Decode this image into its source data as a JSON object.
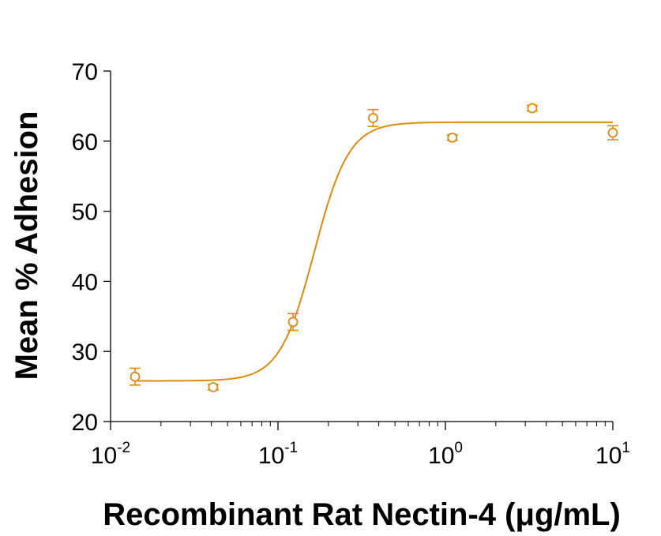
{
  "chart_data": {
    "type": "scatter",
    "title": "",
    "xlabel": "Recombinant Rat Nectin-4 (μg/mL)",
    "ylabel": "Mean % Adhesion",
    "x_scale": "log",
    "xlim": [
      0.01,
      10
    ],
    "ylim": [
      20,
      70
    ],
    "grid": false,
    "legend": "none",
    "color": "#e08a0e",
    "y_ticks": [
      "20",
      "30",
      "40",
      "50",
      "60",
      "70"
    ],
    "x_ticks": [
      {
        "base": "10",
        "exp": "-2"
      },
      {
        "base": "10",
        "exp": "-1"
      },
      {
        "base": "10",
        "exp": "0"
      },
      {
        "base": "10",
        "exp": "1"
      }
    ],
    "series": [
      {
        "x": [
          0.014,
          0.041,
          0.123,
          0.37,
          1.1,
          3.3,
          10
        ],
        "y": [
          26.4,
          24.9,
          34.2,
          63.3,
          60.5,
          64.7,
          61.2
        ],
        "error": [
          1.2,
          0.4,
          1.2,
          1.2,
          0.4,
          0.4,
          1.0
        ]
      }
    ],
    "fit_curve": {
      "model": "4PL",
      "bottom": 25.8,
      "top": 62.7,
      "ec50": 0.165,
      "hill": 4.2
    }
  }
}
